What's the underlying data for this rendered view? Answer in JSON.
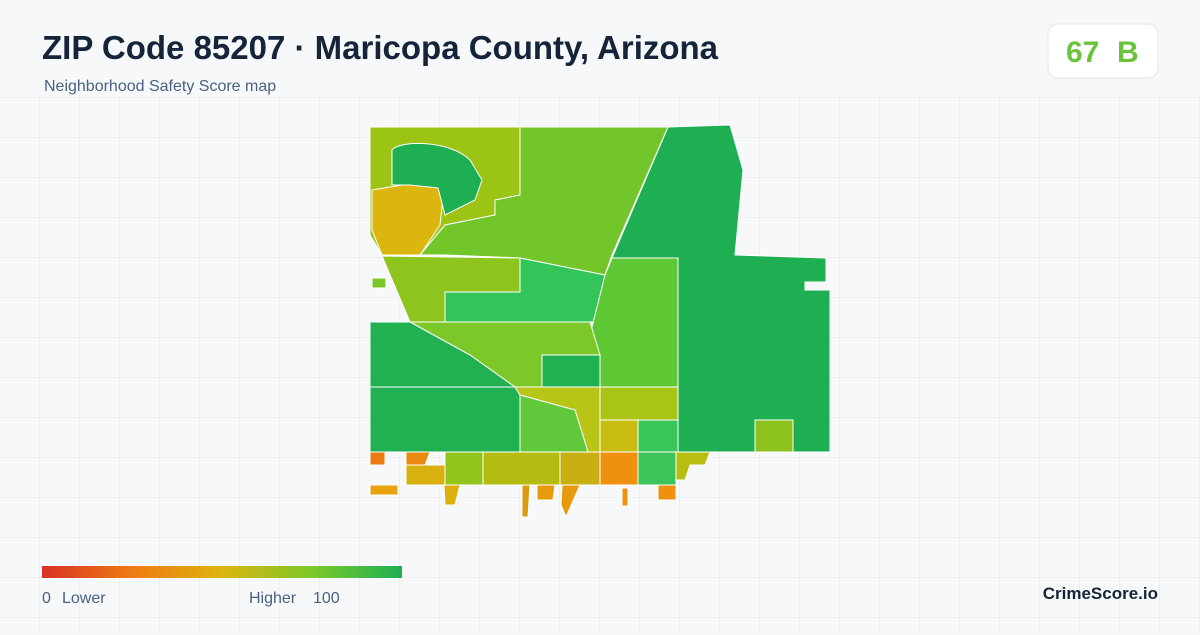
{
  "header": {
    "title": "ZIP Code 85207 · Maricopa County, Arizona",
    "subtitle": "Neighborhood Safety Score map"
  },
  "score": {
    "value": 67,
    "grade": "B"
  },
  "legend": {
    "min": 0,
    "min_label": "Lower",
    "max_label": "Higher",
    "max": 100
  },
  "brand": "CrimeScore.io"
}
